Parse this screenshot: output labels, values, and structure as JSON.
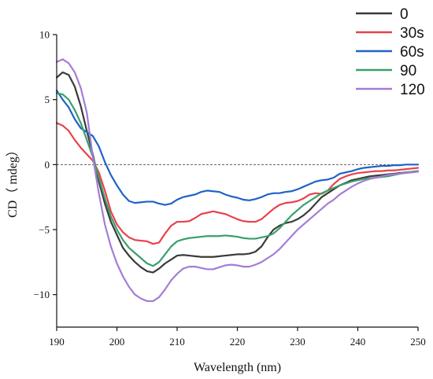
{
  "chart_data": {
    "type": "line",
    "title": "",
    "xlabel": "Wavelength (nm)",
    "ylabel": "CD（ mdeg）",
    "xlim": [
      190,
      250
    ],
    "ylim": [
      -12.5,
      10
    ],
    "xticks": [
      190,
      200,
      210,
      220,
      230,
      240,
      250
    ],
    "yticks": [
      10,
      5,
      0,
      -5,
      -10
    ],
    "ytick_labels": [
      "10",
      "5",
      "0",
      "−5",
      "−10"
    ],
    "zero_line": "dashed",
    "grid": false,
    "legend_position": "top-right",
    "x": [
      190,
      191,
      192,
      193,
      194,
      195,
      196,
      197,
      198,
      199,
      200,
      201,
      202,
      203,
      204,
      205,
      206,
      207,
      208,
      209,
      210,
      211,
      212,
      213,
      214,
      215,
      216,
      217,
      218,
      219,
      220,
      221,
      222,
      223,
      224,
      225,
      226,
      227,
      228,
      229,
      230,
      231,
      232,
      233,
      234,
      235,
      236,
      237,
      238,
      239,
      240,
      241,
      242,
      243,
      244,
      245,
      246,
      247,
      248,
      249,
      250
    ],
    "series": [
      {
        "name": "0",
        "color": "#3a3a3a",
        "values": [
          6.7,
          7.1,
          6.9,
          6.0,
          4.5,
          2.6,
          0.8,
          -1.3,
          -3.0,
          -4.4,
          -5.4,
          -6.4,
          -7.0,
          -7.5,
          -7.9,
          -8.2,
          -8.3,
          -8.0,
          -7.6,
          -7.3,
          -7.0,
          -6.95,
          -7.0,
          -7.05,
          -7.1,
          -7.1,
          -7.1,
          -7.05,
          -7.0,
          -6.95,
          -6.9,
          -6.9,
          -6.85,
          -6.7,
          -6.3,
          -5.6,
          -5.0,
          -4.7,
          -4.5,
          -4.4,
          -4.2,
          -3.9,
          -3.5,
          -3.0,
          -2.5,
          -2.2,
          -1.9,
          -1.6,
          -1.4,
          -1.2,
          -1.1,
          -1.0,
          -0.9,
          -0.85,
          -0.8,
          -0.75,
          -0.7,
          -0.65,
          -0.6,
          -0.55,
          -0.5
        ]
      },
      {
        "name": "30s",
        "color": "#e8424e",
        "values": [
          3.2,
          3.0,
          2.6,
          1.9,
          1.3,
          0.8,
          0.3,
          -0.6,
          -2.0,
          -3.6,
          -4.6,
          -5.2,
          -5.6,
          -5.8,
          -5.85,
          -5.9,
          -6.1,
          -6.0,
          -5.3,
          -4.7,
          -4.4,
          -4.4,
          -4.35,
          -4.1,
          -3.8,
          -3.7,
          -3.6,
          -3.7,
          -3.8,
          -4.0,
          -4.2,
          -4.35,
          -4.4,
          -4.4,
          -4.2,
          -3.8,
          -3.4,
          -3.1,
          -2.95,
          -2.9,
          -2.8,
          -2.6,
          -2.3,
          -2.2,
          -2.25,
          -2.0,
          -1.5,
          -1.1,
          -0.9,
          -0.75,
          -0.65,
          -0.6,
          -0.55,
          -0.5,
          -0.5,
          -0.45,
          -0.45,
          -0.4,
          -0.35,
          -0.3,
          -0.25
        ]
      },
      {
        "name": "60s",
        "color": "#1f63c6",
        "values": [
          5.7,
          5.0,
          4.4,
          3.5,
          2.8,
          2.5,
          2.2,
          1.4,
          0.2,
          -0.8,
          -1.6,
          -2.3,
          -2.8,
          -2.95,
          -2.9,
          -2.85,
          -2.85,
          -3.0,
          -3.1,
          -3.0,
          -2.7,
          -2.5,
          -2.4,
          -2.3,
          -2.1,
          -2.0,
          -2.05,
          -2.1,
          -2.3,
          -2.45,
          -2.55,
          -2.7,
          -2.75,
          -2.65,
          -2.5,
          -2.3,
          -2.2,
          -2.2,
          -2.1,
          -2.05,
          -1.9,
          -1.7,
          -1.5,
          -1.3,
          -1.2,
          -1.15,
          -1.0,
          -0.7,
          -0.6,
          -0.5,
          -0.35,
          -0.25,
          -0.2,
          -0.15,
          -0.1,
          -0.1,
          -0.05,
          -0.05,
          0.0,
          0.0,
          0.0
        ]
      },
      {
        "name": "90",
        "color": "#3aa06a",
        "values": [
          5.5,
          5.4,
          5.0,
          4.2,
          3.2,
          1.9,
          0.6,
          -1.0,
          -2.6,
          -4.0,
          -5.0,
          -5.8,
          -6.4,
          -6.8,
          -7.2,
          -7.6,
          -7.8,
          -7.5,
          -6.9,
          -6.3,
          -5.9,
          -5.75,
          -5.65,
          -5.6,
          -5.55,
          -5.5,
          -5.5,
          -5.5,
          -5.45,
          -5.5,
          -5.55,
          -5.65,
          -5.7,
          -5.7,
          -5.6,
          -5.5,
          -5.3,
          -4.9,
          -4.4,
          -3.9,
          -3.5,
          -3.1,
          -2.8,
          -2.5,
          -2.2,
          -2.0,
          -1.8,
          -1.6,
          -1.45,
          -1.3,
          -1.2,
          -1.1,
          -1.05,
          -1.0,
          -0.95,
          -0.9,
          -0.8,
          -0.7,
          -0.6,
          -0.55,
          -0.5
        ]
      },
      {
        "name": "120",
        "color": "#a57cd6",
        "values": [
          7.9,
          8.1,
          7.8,
          7.1,
          5.9,
          4.0,
          0.6,
          -2.2,
          -4.6,
          -6.3,
          -7.6,
          -8.6,
          -9.4,
          -10.0,
          -10.3,
          -10.5,
          -10.5,
          -10.2,
          -9.6,
          -8.9,
          -8.4,
          -8.0,
          -7.85,
          -7.85,
          -7.95,
          -8.05,
          -8.05,
          -7.9,
          -7.75,
          -7.7,
          -7.75,
          -7.85,
          -7.85,
          -7.7,
          -7.5,
          -7.2,
          -6.9,
          -6.5,
          -6.0,
          -5.5,
          -5.0,
          -4.6,
          -4.2,
          -3.8,
          -3.4,
          -3.0,
          -2.7,
          -2.3,
          -2.0,
          -1.7,
          -1.45,
          -1.25,
          -1.1,
          -1.0,
          -0.9,
          -0.8,
          -0.75,
          -0.7,
          -0.65,
          -0.6,
          -0.55
        ]
      }
    ]
  }
}
